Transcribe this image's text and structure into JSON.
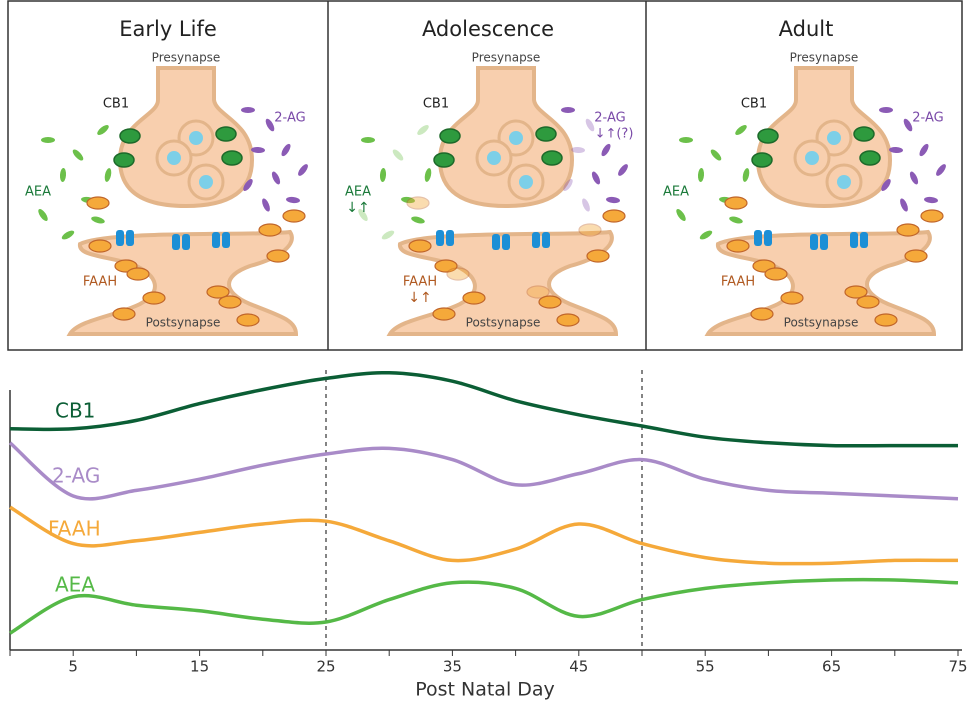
{
  "diagram": {
    "panels": [
      {
        "title": "Early Life",
        "presynapse": "Presynapse",
        "postsynapse": "Postsynapse",
        "cb1": "CB1",
        "ag2": "2-AG",
        "aea": "AEA",
        "faah": "FAAH"
      },
      {
        "title": "Adolescence",
        "presynapse": "Presynapse",
        "postsynapse": "Postsynapse",
        "cb1": "CB1",
        "ag2": "2-AG",
        "ag2_change": "↓↑(?)",
        "aea": "AEA",
        "aea_change": "↓↑",
        "faah": "FAAH",
        "faah_change": "↓↑"
      },
      {
        "title": "Adult",
        "presynapse": "Presynapse",
        "postsynapse": "Postsynapse",
        "cb1": "CB1",
        "ag2": "2-AG",
        "aea": "AEA",
        "faah": "FAAH"
      }
    ]
  },
  "chart_data": {
    "type": "line",
    "xlabel": "Post Natal Day",
    "x": [
      0,
      5,
      10,
      15,
      20,
      25,
      30,
      35,
      40,
      45,
      50,
      55,
      60,
      65,
      70,
      75
    ],
    "series": [
      {
        "name": "CB1",
        "color": "#0b5e35",
        "values": [
          79,
          79,
          82,
          88,
          93,
          97,
          99,
          96,
          89,
          84,
          80,
          76,
          74,
          73,
          73,
          73
        ]
      },
      {
        "name": "2-AG",
        "color": "#a98bc8",
        "values": [
          74,
          55,
          57,
          61,
          66,
          70,
          72,
          68,
          59,
          63,
          68,
          61,
          57,
          56,
          55,
          54
        ]
      },
      {
        "name": "FAAH",
        "color": "#f5a93a",
        "values": [
          51,
          38,
          39,
          42,
          45,
          46,
          39,
          32,
          36,
          45,
          38,
          33,
          31,
          31,
          32,
          32
        ]
      },
      {
        "name": "AEA",
        "color": "#55b947",
        "values": [
          6,
          19,
          16,
          14,
          11,
          10,
          18,
          24,
          22,
          12,
          18,
          22,
          24,
          25,
          25,
          24
        ]
      }
    ],
    "xlim": [
      0,
      75
    ],
    "ylim": [
      0,
      100
    ],
    "xticks": [
      5,
      15,
      25,
      35,
      45,
      55,
      65,
      75
    ],
    "minor_xticks": [
      0,
      10,
      20,
      30,
      40,
      50,
      60,
      70
    ],
    "vlines": [
      25,
      50
    ]
  }
}
